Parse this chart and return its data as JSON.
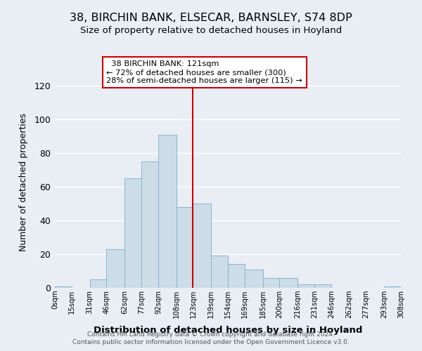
{
  "title1": "38, BIRCHIN BANK, ELSECAR, BARNSLEY, S74 8DP",
  "title2": "Size of property relative to detached houses in Hoyland",
  "xlabel": "Distribution of detached houses by size in Hoyland",
  "ylabel": "Number of detached properties",
  "bin_labels": [
    "0sqm",
    "15sqm",
    "31sqm",
    "46sqm",
    "62sqm",
    "77sqm",
    "92sqm",
    "108sqm",
    "123sqm",
    "139sqm",
    "154sqm",
    "169sqm",
    "185sqm",
    "200sqm",
    "216sqm",
    "231sqm",
    "246sqm",
    "262sqm",
    "277sqm",
    "293sqm",
    "308sqm"
  ],
  "bin_edges": [
    0,
    15,
    31,
    46,
    62,
    77,
    92,
    108,
    123,
    139,
    154,
    169,
    185,
    200,
    216,
    231,
    246,
    262,
    277,
    293,
    308
  ],
  "bar_heights": [
    1,
    0,
    5,
    23,
    65,
    75,
    91,
    48,
    50,
    19,
    14,
    11,
    6,
    6,
    2,
    2,
    0,
    0,
    0,
    1
  ],
  "bar_color": "#ccdde8",
  "bar_edge_color": "#8ab4cc",
  "redline_x": 123,
  "ylim": [
    0,
    125
  ],
  "yticks": [
    0,
    20,
    40,
    60,
    80,
    100,
    120
  ],
  "annotation_title": "38 BIRCHIN BANK: 121sqm",
  "annotation_line1": "← 72% of detached houses are smaller (300)",
  "annotation_line2": "28% of semi-detached houses are larger (115) →",
  "annotation_box_color": "#ffffff",
  "annotation_border_color": "#cc0000",
  "footer1": "Contains HM Land Registry data © Crown copyright and database right 2024.",
  "footer2": "Contains public sector information licensed under the Open Government Licence v3.0.",
  "background_color": "#e8eef4"
}
